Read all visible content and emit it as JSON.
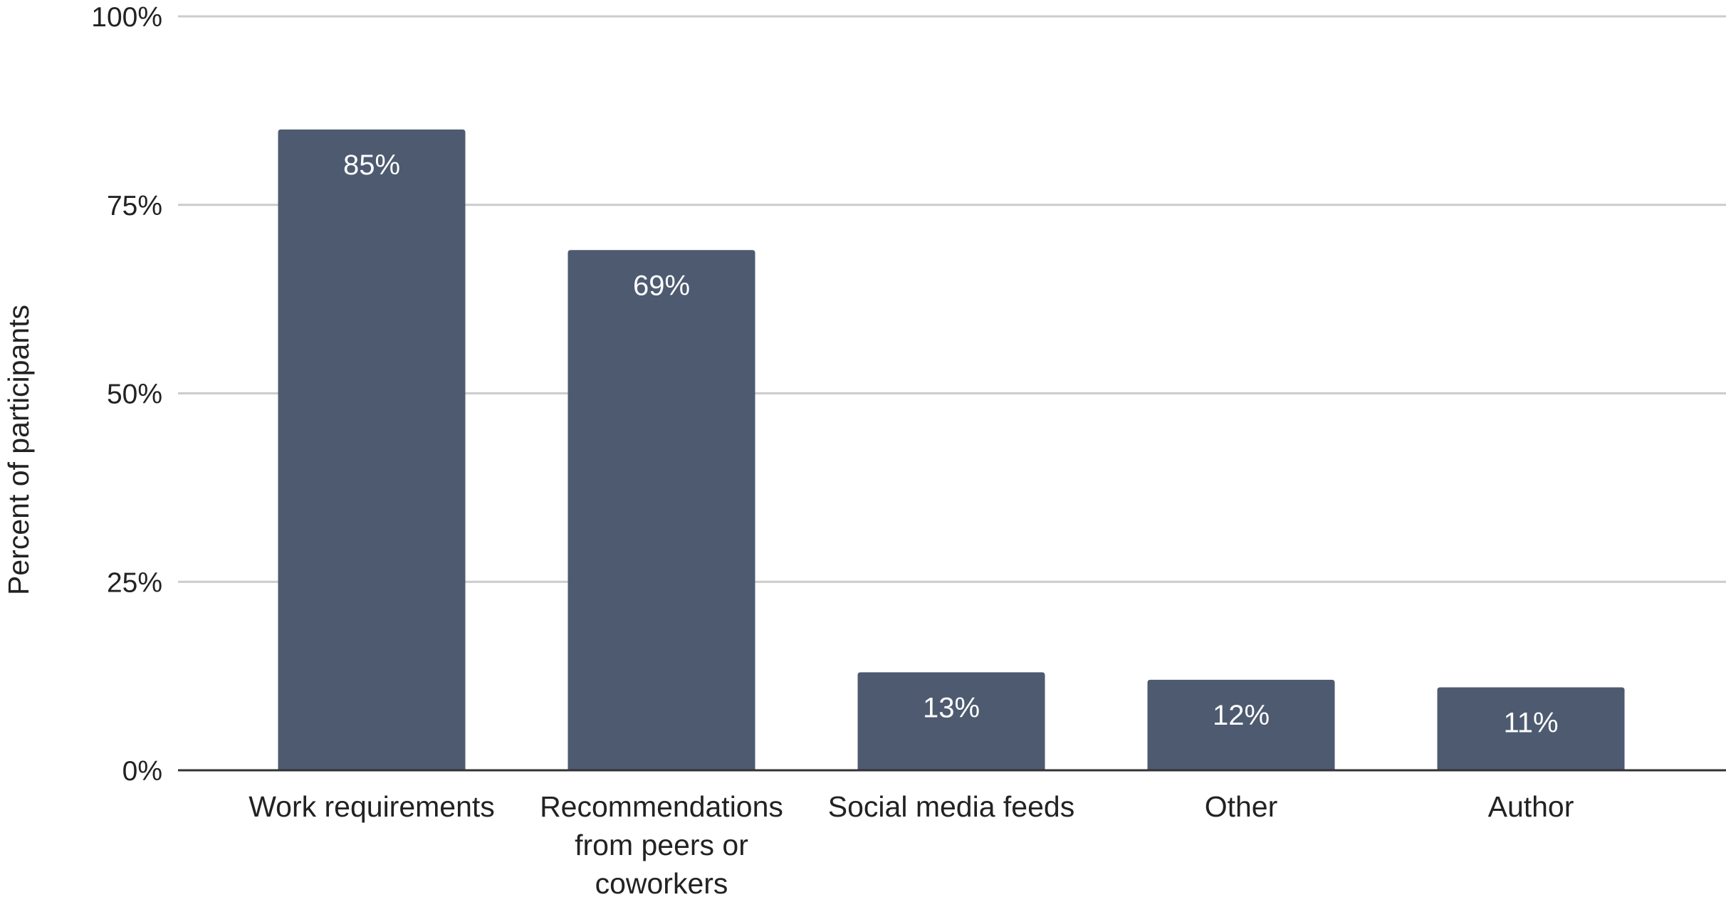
{
  "chart_data": {
    "type": "bar",
    "categories": [
      [
        "Work requirements"
      ],
      [
        "Recommendations",
        "from peers or",
        "coworkers"
      ],
      [
        "Social media feeds"
      ],
      [
        "Other"
      ],
      [
        "Author"
      ]
    ],
    "values": [
      85,
      69,
      13,
      12,
      11
    ],
    "data_labels": [
      "85%",
      "69%",
      "13%",
      "12%",
      "11%"
    ],
    "title": "",
    "xlabel": "",
    "ylabel": "Percent of participants",
    "ylim": [
      0,
      100
    ],
    "yticks": [
      0,
      25,
      50,
      75,
      100
    ],
    "ytick_labels": [
      "0%",
      "25%",
      "50%",
      "75%",
      "100%"
    ],
    "grid": true,
    "legend": "none",
    "colors": {
      "bar": "#4d5a70",
      "grid": "#cccccc",
      "axis": "#333333",
      "data_label": "#ffffff"
    }
  }
}
